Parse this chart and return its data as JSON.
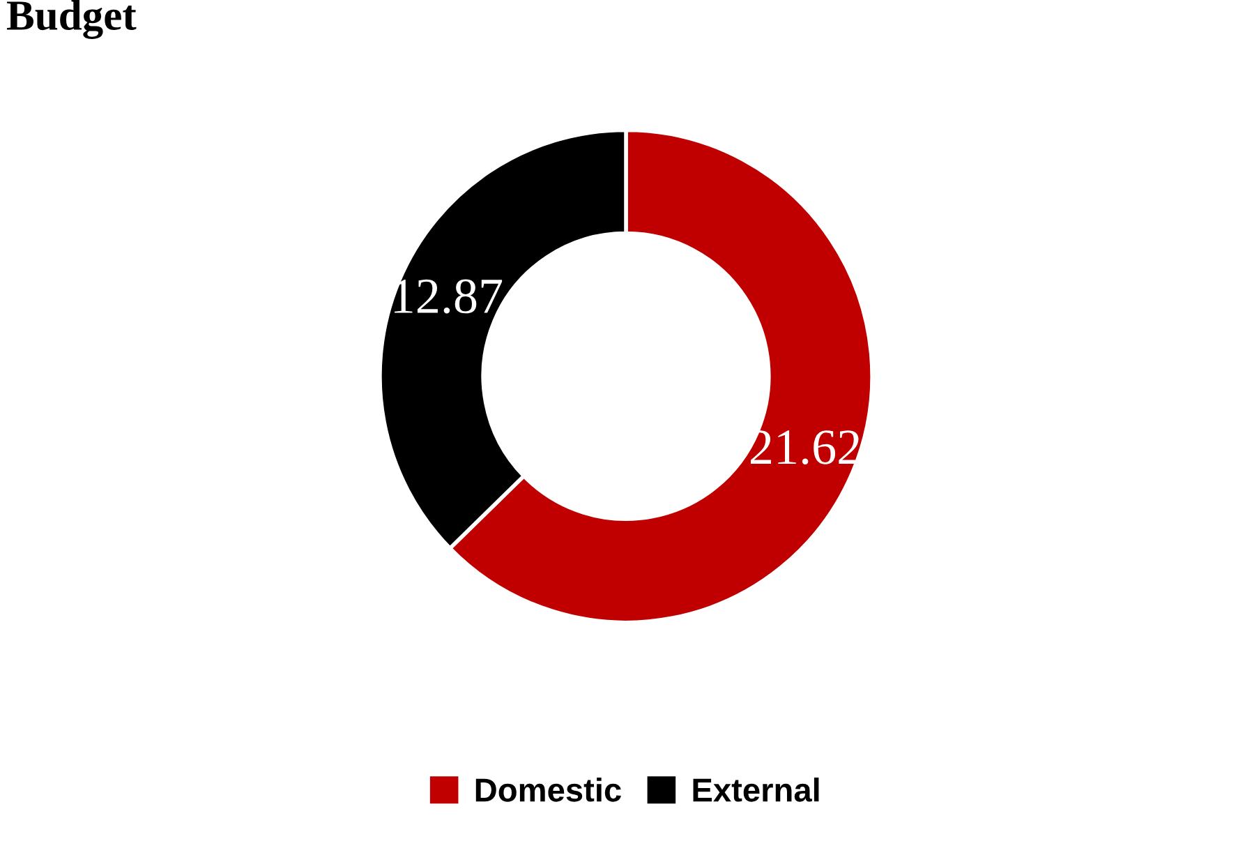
{
  "chart_data": {
    "type": "donut",
    "title": "Budget",
    "categories": [
      "Domestic",
      "External"
    ],
    "values": [
      21.62,
      12.87
    ],
    "colors": [
      "#c00000",
      "#000000"
    ],
    "data_labels": true,
    "legend": "bottom"
  }
}
